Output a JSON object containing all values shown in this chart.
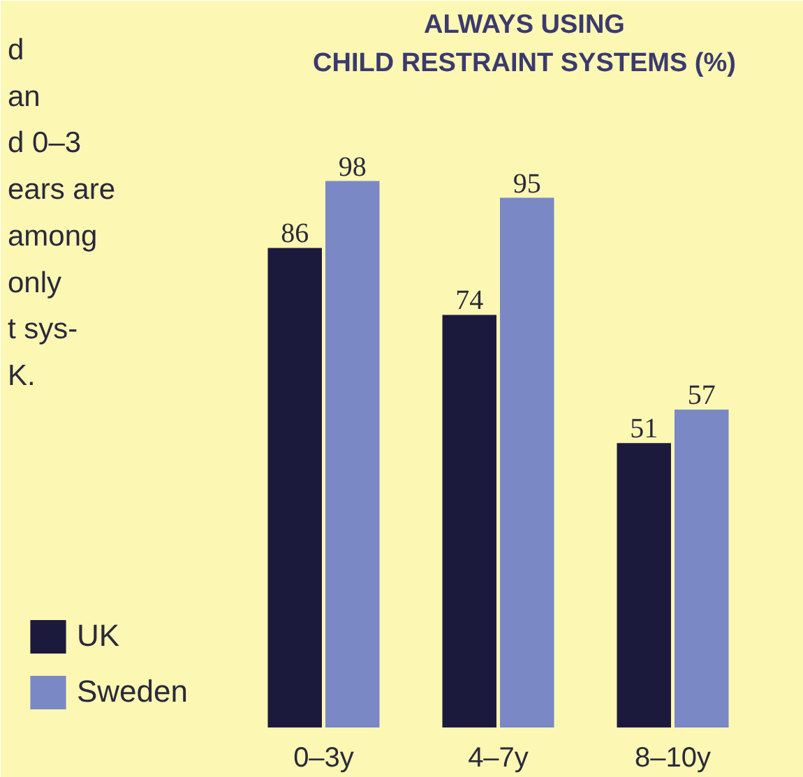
{
  "chart_data": {
    "type": "bar",
    "title": "ALWAYS USING\nCHILD RESTRAINT SYSTEMS (%)",
    "categories": [
      "0–3y",
      "4–7y",
      "8–10y"
    ],
    "series": [
      {
        "name": "UK",
        "color": "#1c1a3c",
        "values": [
          86,
          74,
          51
        ]
      },
      {
        "name": "Sweden",
        "color": "#7a88c6",
        "values": [
          98,
          95,
          57
        ]
      }
    ],
    "data_labels": true,
    "legend": "bottom left",
    "grid": false,
    "annotations": [
      "d\nan\nd 0–3\nears are\namong\nonly\nt sys-\nK."
    ]
  }
}
